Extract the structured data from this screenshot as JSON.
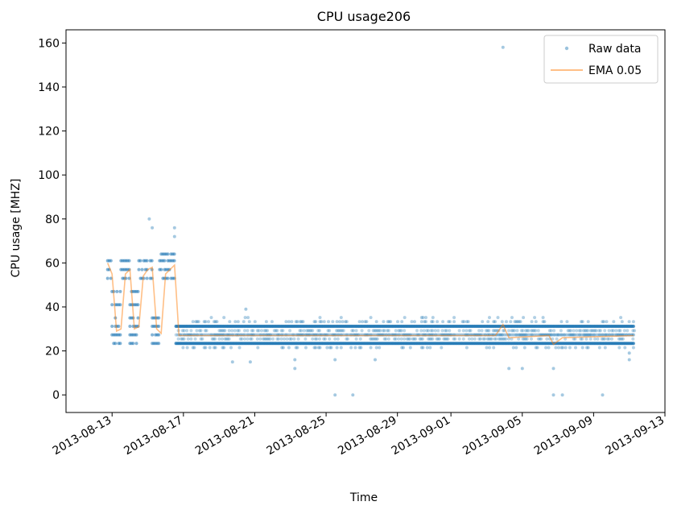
{
  "chart_data": {
    "type": "scatter",
    "title": "CPU usage206",
    "xlabel": "Time",
    "ylabel": "CPU usage [MHZ]",
    "xlim": [
      "2013-08-10T10:00",
      "2013-09-13T00:00"
    ],
    "ylim": [
      -8,
      166
    ],
    "x_ticks": [
      "2013-08-13",
      "2013-08-17",
      "2013-08-21",
      "2013-08-25",
      "2013-08-29",
      "2013-09-01",
      "2013-09-05",
      "2013-09-09",
      "2013-09-13"
    ],
    "y_ticks": [
      0,
      20,
      40,
      60,
      80,
      100,
      120,
      140,
      160
    ],
    "legend_position": "top-right",
    "legend": [
      {
        "label": "Raw data",
        "marker": "dot",
        "color": "#1f77b4"
      },
      {
        "label": "EMA 0.05",
        "marker": "line",
        "color": "#ff7f0e"
      }
    ],
    "colors": {
      "raw": "#1f77b4",
      "ema": "#ff7f0e"
    },
    "time_range": [
      "2013-08-12T18:00",
      "2013-09-11T06:00"
    ],
    "levels": [
      23.4,
      27.3,
      31.2
    ],
    "regimes": [
      {
        "start": "2013-08-12T18:00",
        "end": "2013-08-13T00:00",
        "high": [
          53,
          57,
          61
        ]
      },
      {
        "start": "2013-08-13T00:00",
        "end": "2013-08-13T12:00",
        "low": [
          23.4,
          27.3,
          31.2,
          35,
          41,
          47
        ]
      },
      {
        "start": "2013-08-13T12:00",
        "end": "2013-08-14T00:00",
        "high": [
          53,
          57,
          61
        ]
      },
      {
        "start": "2013-08-14T00:00",
        "end": "2013-08-14T12:00",
        "low": [
          23.4,
          27.3,
          31.2,
          35,
          41,
          47
        ]
      },
      {
        "start": "2013-08-14T12:00",
        "end": "2013-08-15T06:00",
        "high": [
          53,
          57,
          61
        ]
      },
      {
        "start": "2013-08-15T06:00",
        "end": "2013-08-15T16:00",
        "low": [
          23.4,
          27.3,
          31.2,
          35
        ]
      },
      {
        "start": "2013-08-15T16:00",
        "end": "2013-08-16T14:00",
        "high": [
          53,
          57,
          61,
          64
        ]
      }
    ],
    "outliers": [
      {
        "x": "2013-09-03T22:00",
        "y": 158
      },
      {
        "x": "2013-08-15T02:00",
        "y": 80
      },
      {
        "x": "2013-08-15T06:00",
        "y": 76
      },
      {
        "x": "2013-08-16T12:00",
        "y": 76
      },
      {
        "x": "2013-08-16T12:00",
        "y": 72
      },
      {
        "x": "2013-08-20T12:00",
        "y": 39
      },
      {
        "x": "2013-08-19T18:00",
        "y": 15
      },
      {
        "x": "2013-08-20T18:00",
        "y": 15
      },
      {
        "x": "2013-08-23T06:00",
        "y": 12
      },
      {
        "x": "2013-08-23T06:00",
        "y": 16
      },
      {
        "x": "2013-08-25T12:00",
        "y": 0
      },
      {
        "x": "2013-08-25T12:00",
        "y": 16
      },
      {
        "x": "2013-08-26T12:00",
        "y": 0
      },
      {
        "x": "2013-08-27T18:00",
        "y": 16
      },
      {
        "x": "2013-09-04T06:00",
        "y": 12
      },
      {
        "x": "2013-09-05T00:00",
        "y": 12
      },
      {
        "x": "2013-09-06T18:00",
        "y": 0
      },
      {
        "x": "2013-09-06T18:00",
        "y": 12
      },
      {
        "x": "2013-09-07T06:00",
        "y": 0
      },
      {
        "x": "2013-09-09T12:00",
        "y": 0
      },
      {
        "x": "2013-09-11T00:00",
        "y": 16
      },
      {
        "x": "2013-09-11T00:00",
        "y": 19
      }
    ],
    "ema": {
      "x": [
        "2013-08-12T18:00",
        "2013-08-13T00:00",
        "2013-08-13T06:00",
        "2013-08-13T12:00",
        "2013-08-13T18:00",
        "2013-08-14T00:00",
        "2013-08-14T06:00",
        "2013-08-14T12:00",
        "2013-08-14T18:00",
        "2013-08-15T00:00",
        "2013-08-15T06:00",
        "2013-08-15T12:00",
        "2013-08-15T18:00",
        "2013-08-16T00:00",
        "2013-08-16T06:00",
        "2013-08-16T12:00",
        "2013-08-16T18:00",
        "2013-09-03T12:00",
        "2013-09-03T22:00",
        "2013-09-04T06:00",
        "2013-09-06T12:00",
        "2013-09-06T18:00",
        "2013-09-07T06:00",
        "2013-09-11T06:00"
      ],
      "y": [
        60,
        55,
        29,
        30,
        55,
        57,
        30,
        31,
        54,
        57,
        58,
        30,
        28,
        55,
        57,
        59,
        27,
        27,
        32,
        26,
        27,
        23,
        26,
        27
      ]
    }
  }
}
